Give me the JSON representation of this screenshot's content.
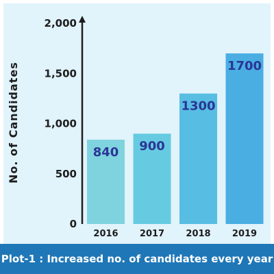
{
  "chart_data": {
    "type": "bar",
    "categories": [
      "2016",
      "2017",
      "2018",
      "2019"
    ],
    "values": [
      840,
      900,
      1300,
      1700
    ],
    "value_labels": [
      "840",
      "900",
      "1300",
      "1700"
    ],
    "ylabel": "No. of Candidates",
    "xlabel": "",
    "ylim": [
      0,
      2000
    ],
    "yticks": [
      0,
      500,
      1000,
      1500,
      2000
    ],
    "ytick_labels": [
      "0",
      "500",
      "1,000",
      "1,500",
      "2,000"
    ],
    "grid": false,
    "bar_colors": [
      "#7fd3de",
      "#66cbe0",
      "#57bde2",
      "#4aaee3"
    ],
    "value_label_color": "#2a3596",
    "caption": "Plot-1 : Increased no. of candidates every year"
  },
  "colors": {
    "background": "#e1f3fb",
    "caption_bar": "#1f77b7",
    "axis": "#1d1d1d"
  }
}
